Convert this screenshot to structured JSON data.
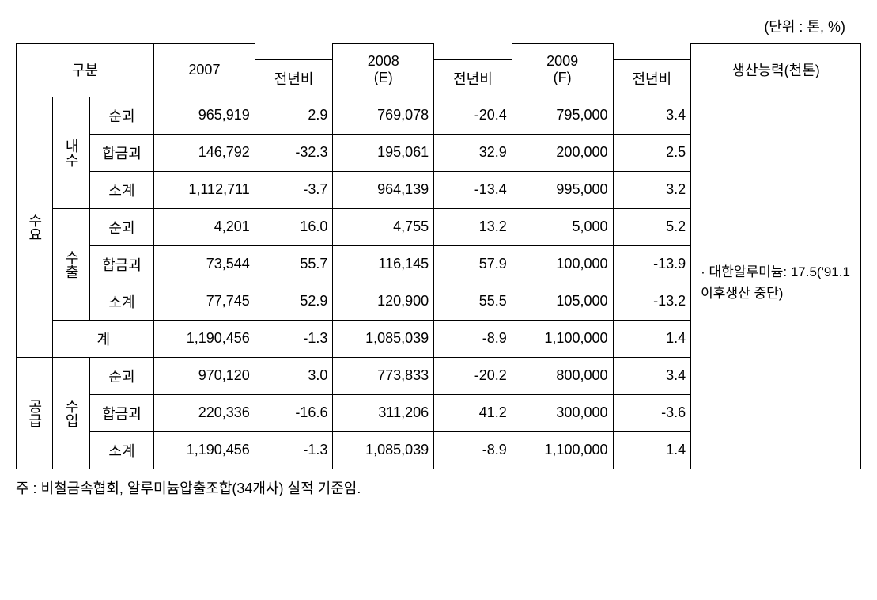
{
  "unit_label": "(단위 : 톤, %)",
  "header": {
    "category": "구분",
    "y2007": "2007",
    "y2008": "2008\n(E)",
    "y2009": "2009\n(F)",
    "yoy": "전년비",
    "capacity": "생산능력(천톤)"
  },
  "categories": {
    "demand": "수요",
    "supply": "공급",
    "domestic": "내수",
    "export": "수출",
    "import": "수입",
    "total": "계",
    "pure": "순괴",
    "alloy": "합금괴",
    "subtotal": "소계"
  },
  "table": {
    "rows": [
      {
        "c2007": "965,919",
        "yoy2007": "2.9",
        "c2008": "769,078",
        "yoy2008": "-20.4",
        "c2009": "795,000",
        "yoy2009": "3.4"
      },
      {
        "c2007": "146,792",
        "yoy2007": "-32.3",
        "c2008": "195,061",
        "yoy2008": "32.9",
        "c2009": "200,000",
        "yoy2009": "2.5"
      },
      {
        "c2007": "1,112,711",
        "yoy2007": "-3.7",
        "c2008": "964,139",
        "yoy2008": "-13.4",
        "c2009": "995,000",
        "yoy2009": "3.2"
      },
      {
        "c2007": "4,201",
        "yoy2007": "16.0",
        "c2008": "4,755",
        "yoy2008": "13.2",
        "c2009": "5,000",
        "yoy2009": "5.2"
      },
      {
        "c2007": "73,544",
        "yoy2007": "55.7",
        "c2008": "116,145",
        "yoy2008": "57.9",
        "c2009": "100,000",
        "yoy2009": "-13.9"
      },
      {
        "c2007": "77,745",
        "yoy2007": "52.9",
        "c2008": "120,900",
        "yoy2008": "55.5",
        "c2009": "105,000",
        "yoy2009": "-13.2"
      },
      {
        "c2007": "1,190,456",
        "yoy2007": "-1.3",
        "c2008": "1,085,039",
        "yoy2008": "-8.9",
        "c2009": "1,100,000",
        "yoy2009": "1.4"
      },
      {
        "c2007": "970,120",
        "yoy2007": "3.0",
        "c2008": "773,833",
        "yoy2008": "-20.2",
        "c2009": "800,000",
        "yoy2009": "3.4"
      },
      {
        "c2007": "220,336",
        "yoy2007": "-16.6",
        "c2008": "311,206",
        "yoy2008": "41.2",
        "c2009": "300,000",
        "yoy2009": "-3.6"
      },
      {
        "c2007": "1,190,456",
        "yoy2007": "-1.3",
        "c2008": "1,085,039",
        "yoy2008": "-8.9",
        "c2009": "1,100,000",
        "yoy2009": "1.4"
      }
    ]
  },
  "capacity_note": "· 대한알루미늄: 17.5('91.1 이후생산 중단)",
  "footer_note": "주 : 비철금속협회, 알루미늄압출조합(34개사) 실적 기준임.",
  "styling": {
    "font_family": "Malgun Gothic",
    "font_size_pt": 14,
    "border_color": "#000000",
    "background_color": "#ffffff",
    "text_color": "#000000"
  }
}
